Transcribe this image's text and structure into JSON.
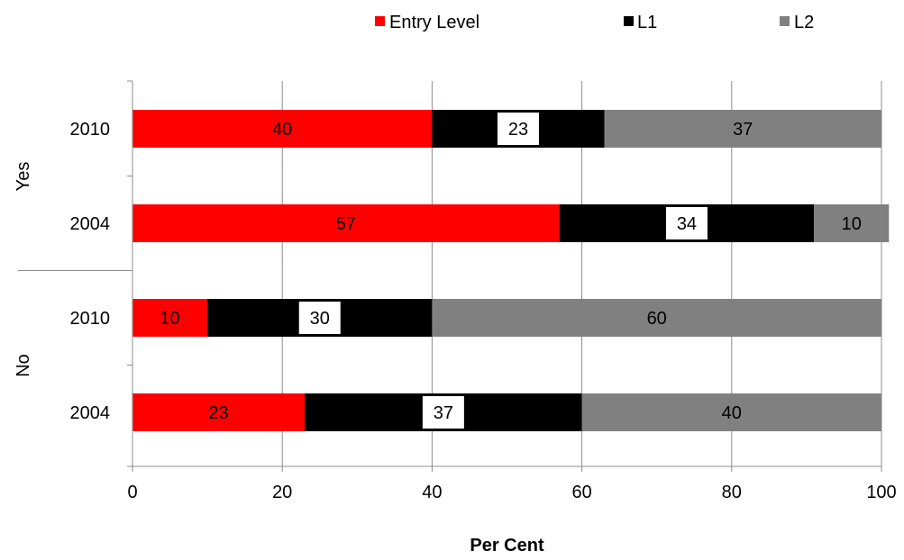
{
  "chart_data": {
    "type": "bar",
    "orientation": "horizontal",
    "stacked": true,
    "title": "",
    "xlabel": "Per Cent",
    "ylabel": "",
    "xlim": [
      0,
      100
    ],
    "x_ticks": [
      "0",
      "20",
      "40",
      "60",
      "80",
      "100"
    ],
    "grid": "vertical",
    "legend_position": "top",
    "groups": [
      "Yes",
      "No"
    ],
    "categories": [
      {
        "group": "Yes",
        "label": "2010"
      },
      {
        "group": "Yes",
        "label": "2004"
      },
      {
        "group": "No",
        "label": "2010"
      },
      {
        "group": "No",
        "label": "2004"
      }
    ],
    "series": [
      {
        "name": "Entry Level",
        "color": "#ff0000",
        "values": [
          40,
          57,
          10,
          23
        ]
      },
      {
        "name": "L1",
        "color": "#000000",
        "values": [
          23,
          34,
          30,
          37
        ]
      },
      {
        "name": "L2",
        "color": "#808080",
        "values": [
          37,
          10,
          60,
          40
        ]
      }
    ]
  }
}
